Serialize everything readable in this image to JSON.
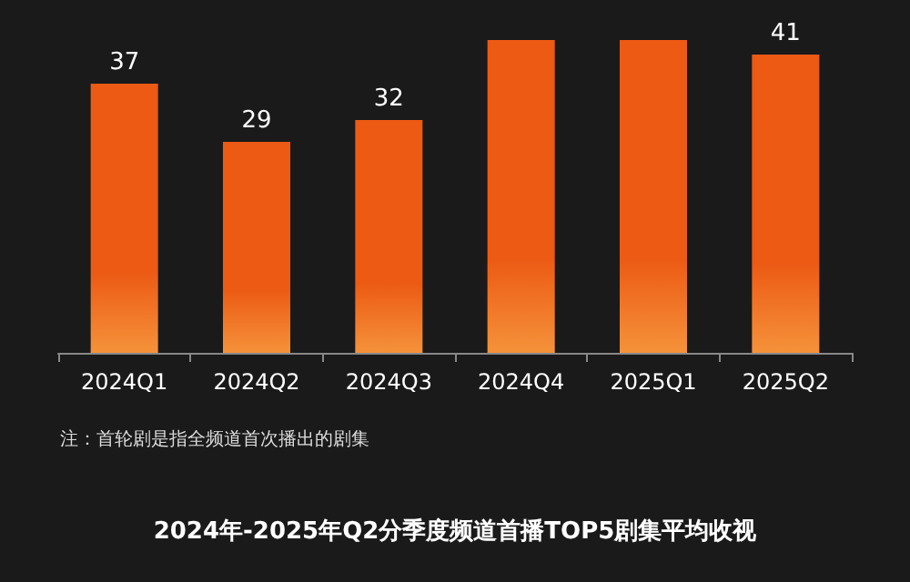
{
  "chart_data": {
    "type": "bar",
    "title": "2024年-2025年Q2分季度频道首播TOP5剧集平均收视",
    "categories": [
      "2024Q1",
      "2024Q2",
      "2024Q3",
      "2024Q4",
      "2025Q1",
      "2025Q2"
    ],
    "values": [
      37,
      29,
      32,
      43,
      43,
      41
    ],
    "value_labels": [
      "37",
      "29",
      "32",
      null,
      null,
      "41"
    ],
    "color": "#ec5a14",
    "ylim": [
      0,
      43
    ],
    "tick_labels": "x",
    "grid": false,
    "annotations": [
      "注：首轮剧是指全频道首次播出的剧集"
    ]
  }
}
